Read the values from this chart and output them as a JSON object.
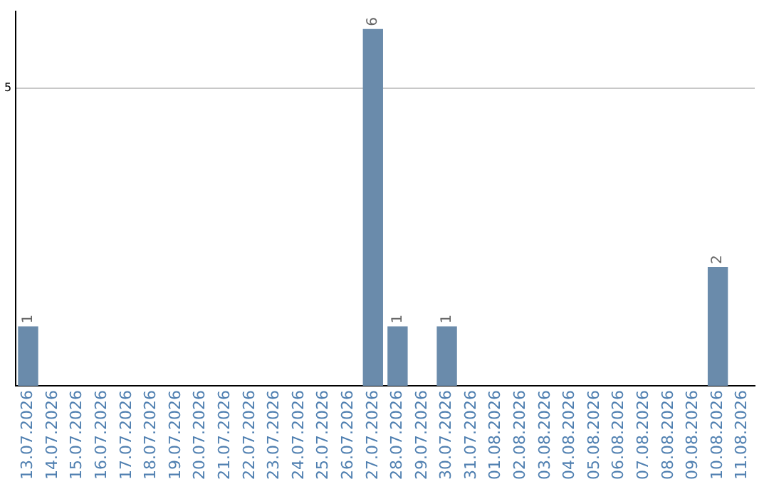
{
  "chart_data": {
    "type": "bar",
    "categories": [
      "13.07.2026",
      "14.07.2026",
      "15.07.2026",
      "16.07.2026",
      "17.07.2026",
      "18.07.2026",
      "19.07.2026",
      "20.07.2026",
      "21.07.2026",
      "22.07.2026",
      "23.07.2026",
      "24.07.2026",
      "25.07.2026",
      "26.07.2026",
      "27.07.2026",
      "28.07.2026",
      "29.07.2026",
      "30.07.2026",
      "31.07.2026",
      "01.08.2026",
      "02.08.2026",
      "03.08.2026",
      "04.08.2026",
      "05.08.2026",
      "06.08.2026",
      "07.08.2026",
      "08.08.2026",
      "09.08.2026",
      "10.08.2026",
      "11.08.2026"
    ],
    "values": [
      1,
      0,
      0,
      0,
      0,
      0,
      0,
      0,
      0,
      0,
      0,
      0,
      0,
      0,
      6,
      1,
      0,
      1,
      0,
      0,
      0,
      0,
      0,
      0,
      0,
      0,
      0,
      0,
      2,
      0
    ],
    "value_labels": [
      "1",
      null,
      null,
      null,
      null,
      null,
      null,
      null,
      null,
      null,
      null,
      null,
      null,
      null,
      "6",
      "1",
      null,
      "1",
      null,
      null,
      null,
      null,
      null,
      null,
      null,
      null,
      null,
      null,
      "2",
      null
    ],
    "color": "#6a8bab",
    "ylim": [
      0,
      6.3
    ],
    "yticks": [
      5
    ],
    "grid": "y",
    "legend": false
  }
}
